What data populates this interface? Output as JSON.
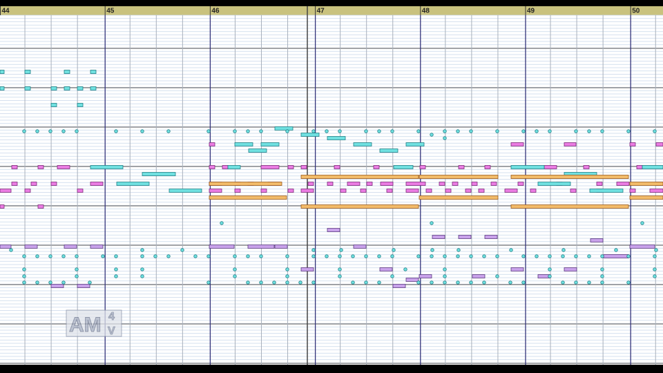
{
  "ruler": {
    "measures": [
      "44",
      "45",
      "46",
      "47",
      "48",
      "49",
      "50"
    ]
  },
  "logo": {
    "main": "AM",
    "sup": "4",
    "sub": "V"
  }
}
